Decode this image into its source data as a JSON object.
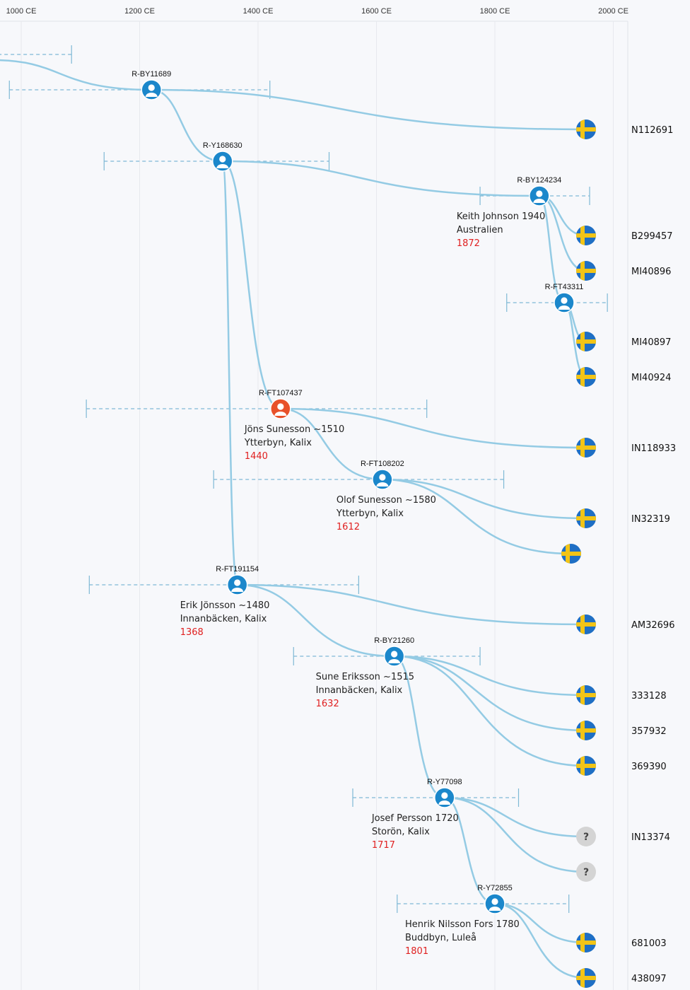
{
  "axis": {
    "ticks": [
      "1000 CE",
      "1200 CE",
      "1400 CE",
      "1600 CE",
      "1800 CE",
      "2000 CE"
    ],
    "tick_years": [
      1000,
      1200,
      1400,
      1600,
      1800,
      2000
    ]
  },
  "colors": {
    "line": "#94cbe4",
    "node_blue": "#1b87cb",
    "node_highlight": "#e8512a",
    "year_red": "#e02020",
    "flag_blue": "#1f6fc4",
    "flag_yellow": "#f2c416",
    "unknown_gray": "#d4d4d4"
  },
  "nodes": [
    {
      "id": "R-BY11689",
      "label": "R-BY11689",
      "year": 1220,
      "ci": [
        980,
        1420
      ],
      "color": "blue",
      "row": "n0"
    },
    {
      "id": "R-Y168630",
      "label": "R-Y168630",
      "year": 1340,
      "ci": [
        1140,
        1520
      ],
      "color": "blue",
      "row": "n1"
    },
    {
      "id": "R-BY124234",
      "label": "R-BY124234",
      "year": 1875,
      "ci": [
        1775,
        1960
      ],
      "color": "blue",
      "row": "n2",
      "person": [
        "Keith Johnson 1940",
        "Australien"
      ],
      "person_year": "1872"
    },
    {
      "id": "R-FT43311",
      "label": "R-FT43311",
      "year": 1917,
      "ci": [
        1820,
        1990
      ],
      "color": "blue",
      "row": "n3"
    },
    {
      "id": "R-FT107437",
      "label": "R-FT107437",
      "year": 1438,
      "ci": [
        1110,
        1685
      ],
      "color": "red",
      "row": "n4",
      "person": [
        "Jöns Sunesson ~1510",
        "Ytterbyn, Kalix"
      ],
      "person_year": "1440"
    },
    {
      "id": "R-FT108202",
      "label": "R-FT108202",
      "year": 1610,
      "ci": [
        1325,
        1815
      ],
      "color": "blue",
      "row": "n5",
      "person": [
        "Olof Sunesson ~1580",
        "Ytterbyn, Kalix"
      ],
      "person_year": "1612"
    },
    {
      "id": "R-FT191154",
      "label": "R-FT191154",
      "year": 1365,
      "ci": [
        1115,
        1570
      ],
      "color": "blue",
      "row": "n6",
      "person": [
        "Erik Jönsson ~1480",
        "Innanbäcken, Kalix"
      ],
      "person_year": "1368"
    },
    {
      "id": "R-BY21260",
      "label": "R-BY21260",
      "year": 1630,
      "ci": [
        1460,
        1775
      ],
      "color": "blue",
      "row": "n7",
      "person": [
        "Sune Eriksson ~1515",
        "Innanbäcken, Kalix"
      ],
      "person_year": "1632"
    },
    {
      "id": "R-Y77098",
      "label": "R-Y77098",
      "year": 1715,
      "ci": [
        1560,
        1840
      ],
      "color": "blue",
      "row": "n8",
      "person": [
        "Josef Persson 1720",
        "Storön, Kalix"
      ],
      "person_year": "1717"
    },
    {
      "id": "R-Y72855",
      "label": "R-Y72855",
      "year": 1800,
      "ci": [
        1635,
        1925
      ],
      "color": "blue",
      "row": "n9",
      "person": [
        "Henrik Nilsson Fors 1780",
        "Buddbyn, Luleå"
      ],
      "person_year": "1801"
    }
  ],
  "samples": [
    {
      "id": "N112691",
      "label": "N112691",
      "flag": "sweden",
      "row": "s0"
    },
    {
      "id": "B299457",
      "label": "B299457",
      "flag": "sweden",
      "row": "s1"
    },
    {
      "id": "MI40896",
      "label": "MI40896",
      "flag": "sweden",
      "row": "s2"
    },
    {
      "id": "MI40897",
      "label": "MI40897",
      "flag": "sweden",
      "row": "s3"
    },
    {
      "id": "MI40924",
      "label": "MI40924",
      "flag": "sweden",
      "row": "s4"
    },
    {
      "id": "IN118933",
      "label": "IN118933",
      "flag": "sweden",
      "row": "s5"
    },
    {
      "id": "IN32319",
      "label": "IN32319",
      "flag": "sweden",
      "row": "s6"
    },
    {
      "id": "unlabeled-a",
      "label": "",
      "flag": "sweden",
      "row": "s7"
    },
    {
      "id": "AM32696",
      "label": "AM32696",
      "flag": "sweden",
      "row": "s8"
    },
    {
      "id": "333128",
      "label": "333128",
      "flag": "sweden",
      "row": "s9"
    },
    {
      "id": "357932",
      "label": "357932",
      "flag": "sweden",
      "row": "s10"
    },
    {
      "id": "369390",
      "label": "369390",
      "flag": "sweden",
      "row": "s11"
    },
    {
      "id": "IN13374",
      "label": "IN13374",
      "flag": "unknown",
      "row": "s12"
    },
    {
      "id": "unlabeled-b",
      "label": "",
      "flag": "unknown",
      "row": "s13"
    },
    {
      "id": "681003",
      "label": "681003",
      "flag": "sweden",
      "row": "s14"
    },
    {
      "id": "438097",
      "label": "438097",
      "flag": "sweden",
      "row": "s15"
    }
  ],
  "edges": [
    [
      "root",
      "R-BY11689"
    ],
    [
      "R-BY11689",
      "N112691"
    ],
    [
      "R-BY11689",
      "R-Y168630"
    ],
    [
      "R-Y168630",
      "R-BY124234"
    ],
    [
      "R-BY124234",
      "B299457"
    ],
    [
      "R-BY124234",
      "MI40896"
    ],
    [
      "R-BY124234",
      "R-FT43311"
    ],
    [
      "R-FT43311",
      "MI40897"
    ],
    [
      "R-FT43311",
      "MI40924"
    ],
    [
      "R-Y168630",
      "R-FT107437"
    ],
    [
      "R-FT107437",
      "IN118933"
    ],
    [
      "R-FT107437",
      "R-FT108202"
    ],
    [
      "R-FT108202",
      "IN32319"
    ],
    [
      "R-FT108202",
      "unlabeled-a"
    ],
    [
      "R-Y168630",
      "R-FT191154"
    ],
    [
      "R-FT191154",
      "AM32696"
    ],
    [
      "R-FT191154",
      "R-BY21260"
    ],
    [
      "R-BY21260",
      "333128"
    ],
    [
      "R-BY21260",
      "357932"
    ],
    [
      "R-BY21260",
      "369390"
    ],
    [
      "R-BY21260",
      "R-Y77098"
    ],
    [
      "R-Y77098",
      "IN13374"
    ],
    [
      "R-Y77098",
      "unlabeled-b"
    ],
    [
      "R-Y77098",
      "R-Y72855"
    ],
    [
      "R-Y72855",
      "681003"
    ],
    [
      "R-Y72855",
      "438097"
    ]
  ],
  "root_ci": [
    950,
    1085
  ]
}
